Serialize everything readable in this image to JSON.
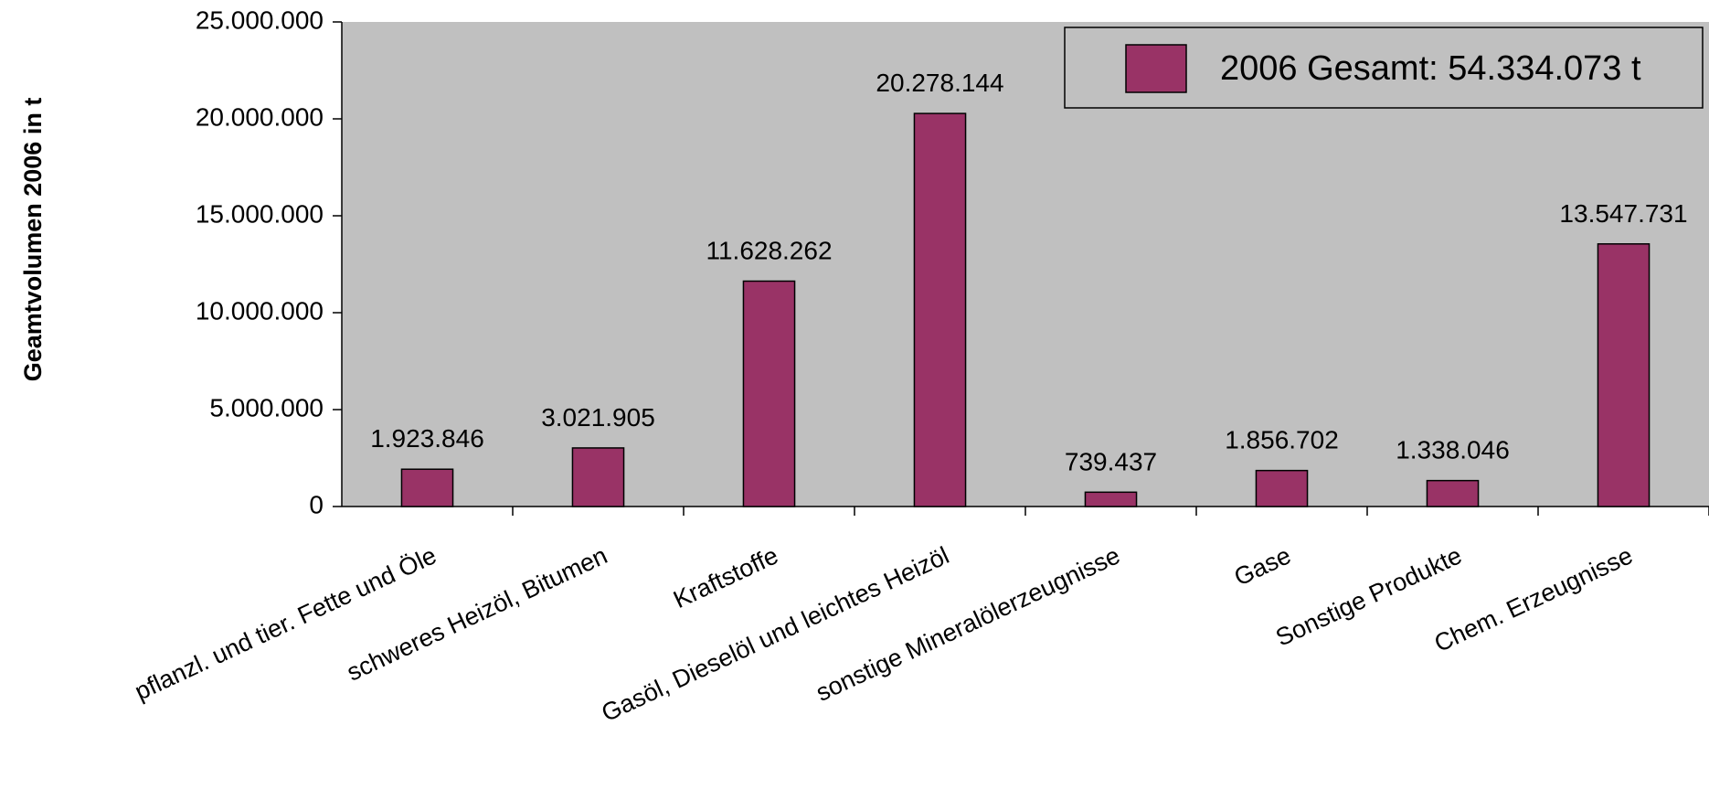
{
  "chart_data": {
    "type": "bar",
    "categories": [
      "pflanzl. und tier. Fette und Öle",
      "schweres Heizöl, Bitumen",
      "Kraftstoffe",
      "Gasöl, Dieselöl und leichtes Heizöl",
      "sonstige Mineralölerzeugnisse",
      "Gase",
      "Sonstige Produkte",
      "Chem. Erzeugnisse"
    ],
    "series": [
      {
        "name": "2006 Gesamt: 54.334.073 t",
        "values": [
          1923846,
          3021905,
          11628262,
          20278144,
          739437,
          1856702,
          1338046,
          13547731
        ],
        "value_labels": [
          "1.923.846",
          "3.021.905",
          "11.628.262",
          "20.278.144",
          "739.437",
          "1.856.702",
          "1.338.046",
          "13.547.731"
        ]
      }
    ],
    "ylabel": "Geamtvolumen 2006 in t",
    "xlabel": "",
    "ylim": [
      0,
      25000000
    ],
    "yticks": [
      0,
      5000000,
      10000000,
      15000000,
      20000000,
      25000000
    ],
    "ytick_labels": [
      "0",
      "5.000.000",
      "10.000.000",
      "15.000.000",
      "20.000.000",
      "25.000.000"
    ],
    "grid": false,
    "legend_position": "top-right",
    "colors": {
      "bar": "#993366",
      "plot_background": "#c0c0c0",
      "outline": "#000000"
    }
  }
}
